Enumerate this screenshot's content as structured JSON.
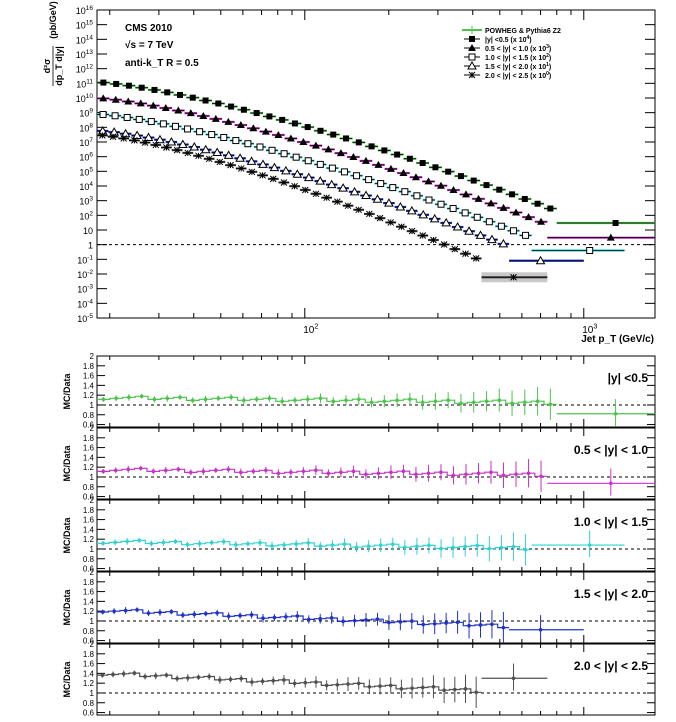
{
  "chart_data": [
    {
      "type": "scatter",
      "id": "spectrum",
      "xscale": "log",
      "yscale": "log",
      "xlim": [
        18,
        1800
      ],
      "ylim": [
        1e-05,
        1e+16
      ],
      "x_ticklabels": [
        "10^2",
        "10^3"
      ],
      "y_ticklabels": [
        "10^-5",
        "10^-3",
        "10^-1",
        "10",
        "10^3",
        "10^5",
        "10^7",
        "10^9",
        "10^11",
        "10^13",
        "10^15"
      ],
      "y_ticklabels_extra": [
        "10^16",
        "10^14",
        "10^12",
        "10^10",
        "10^8",
        "10^6",
        "10^4",
        "10^2",
        "1",
        "10^-2",
        "10^-4"
      ],
      "xlabel": "Jet p_T (GeV/c)",
      "ylabel_frac_num": "d²σ",
      "ylabel_frac_den": "dp_T d|y|",
      "ylabel_unit": "(pb/GeV)",
      "annotations": [
        "CMS 2010",
        "√s = 7 TeV",
        "anti-k_T R = 0.5"
      ],
      "legend_position": "top-right",
      "dashed_line_y": 1,
      "legend": [
        {
          "label": "POWHEG & Pythia6 Z2",
          "marker": "line",
          "color": "#4cc44c"
        },
        {
          "label": "|y| <0.5 (x 10^4)",
          "marker": "square-filled",
          "color": "#000000"
        },
        {
          "label": "0.5 < |y| < 1.0 (x 10^3)",
          "marker": "triangle-filled",
          "color": "#000000"
        },
        {
          "label": "1.0 < |y| < 1.5 (x 10^2)",
          "marker": "square-open",
          "color": "#000000"
        },
        {
          "label": "1.5 < |y| < 2.0 (x 10^1)",
          "marker": "triangle-open",
          "color": "#000000"
        },
        {
          "label": "2.0 < |y| < 2.5 (x 10^0)",
          "marker": "star",
          "color": "#000000"
        }
      ],
      "series": [
        {
          "name": "|y| <0.5 (x 10^4)",
          "marker": "square-filled",
          "mc_color": "#4cc44c",
          "x_min": 18,
          "x_max": 800,
          "y_start": 120000000000.0,
          "y_end": 200,
          "extra": {
            "x": 1300,
            "y": 30,
            "x0": 800,
            "x1": 1800
          }
        },
        {
          "name": "0.5 < |y| < 1.0 (x 10^3)",
          "marker": "triangle-filled",
          "mc_color": "#c832c8",
          "x_min": 18,
          "x_max": 740,
          "y_start": 10000000000.0,
          "y_end": 25,
          "extra": {
            "x": 1250,
            "y": 3,
            "x0": 740,
            "x1": 1800
          }
        },
        {
          "name": "1.0 < |y| < 1.5 (x 10^2)",
          "marker": "square-open",
          "mc_color": "#32d2d2",
          "x_min": 18,
          "x_max": 650,
          "y_start": 800000000.0,
          "y_end": 3,
          "extra": {
            "x": 1050,
            "y": 0.4,
            "x0": 650,
            "x1": 1400
          }
        },
        {
          "name": "1.5 < |y| < 2.0 (x 10^1)",
          "marker": "triangle-open",
          "mc_color": "#1e32c8",
          "x_min": 18,
          "x_max": 540,
          "y_start": 60000000.0,
          "y_end": 0.8,
          "extra": {
            "x": 700,
            "y": 0.08,
            "x0": 540,
            "x1": 1000
          }
        },
        {
          "name": "2.0 < |y| < 2.5 (x 10^0)",
          "marker": "star",
          "mc_color": "#505050",
          "x_min": 18,
          "x_max": 430,
          "y_start": 30000000.0,
          "y_end": 0.08,
          "extra": {
            "x": 560,
            "y": 0.006,
            "x0": 430,
            "x1": 740,
            "band": true
          }
        }
      ]
    },
    {
      "type": "scatter",
      "id": "ratio0",
      "label": "|y| <0.5",
      "ylabel": "MC/Data",
      "color": "#4cc44c",
      "ylim": [
        0.55,
        2.0
      ],
      "ticklabels": [
        "0.6",
        "0.8",
        "1",
        "1.2",
        "1.4",
        "1.6",
        "1.8",
        "2"
      ],
      "x_min": 18,
      "x_max": 800,
      "level_start": 1.15,
      "level_end": 1.05,
      "tail": {
        "x0": 800,
        "x1": 1800,
        "y": 0.82
      },
      "extra_point": {
        "x": 1300,
        "y": 0.82
      }
    },
    {
      "type": "scatter",
      "id": "ratio1",
      "label": "0.5 < |y| < 1.0",
      "ylabel": "MC/Data",
      "color": "#c832c8",
      "ylim": [
        0.55,
        2.0
      ],
      "ticklabels": [
        "0.6",
        "0.8",
        "1",
        "1.2",
        "1.4",
        "1.6",
        "1.8",
        "2"
      ],
      "x_min": 18,
      "x_max": 740,
      "level_start": 1.15,
      "level_end": 1.05,
      "tail": {
        "x0": 740,
        "x1": 1800,
        "y": 0.87
      },
      "extra_point": {
        "x": 1250,
        "y": 0.87
      }
    },
    {
      "type": "scatter",
      "id": "ratio2",
      "label": "1.0 < |y| < 1.5",
      "ylabel": "MC/Data",
      "color": "#32d2d2",
      "ylim": [
        0.55,
        2.0
      ],
      "ticklabels": [
        "0.6",
        "0.8",
        "1",
        "1.2",
        "1.4",
        "1.6",
        "1.8",
        "2"
      ],
      "x_min": 18,
      "x_max": 650,
      "level_start": 1.15,
      "level_end": 1.02,
      "tail": {
        "x0": 650,
        "x1": 1400,
        "y": 1.08
      },
      "extra_point": {
        "x": 1050,
        "y": 1.08
      }
    },
    {
      "type": "scatter",
      "id": "ratio3",
      "label": "1.5 < |y| < 2.0",
      "ylabel": "MC/Data",
      "color": "#1e32c8",
      "ylim": [
        0.55,
        2.0
      ],
      "ticklabels": [
        "0.6",
        "0.8",
        "1",
        "1.2",
        "1.4",
        "1.6",
        "1.8",
        "2"
      ],
      "x_min": 18,
      "x_max": 540,
      "level_start": 1.22,
      "level_end": 0.9,
      "tail": {
        "x0": 540,
        "x1": 1000,
        "y": 0.82
      },
      "extra_point": {
        "x": 700,
        "y": 0.82
      }
    },
    {
      "type": "scatter",
      "id": "ratio4",
      "label": "2.0 < |y| < 2.5",
      "ylabel": "MC/Data",
      "color": "#505050",
      "ylim": [
        0.55,
        2.0
      ],
      "ticklabels": [
        "0.6",
        "0.8",
        "1",
        "1.2",
        "1.4",
        "1.6",
        "1.8",
        "2"
      ],
      "x_min": 18,
      "x_max": 430,
      "level_start": 1.4,
      "level_end": 1.05,
      "tail": {
        "x0": 430,
        "x1": 740,
        "y": 1.3
      },
      "extra_point": {
        "x": 560,
        "y": 1.3
      }
    }
  ]
}
